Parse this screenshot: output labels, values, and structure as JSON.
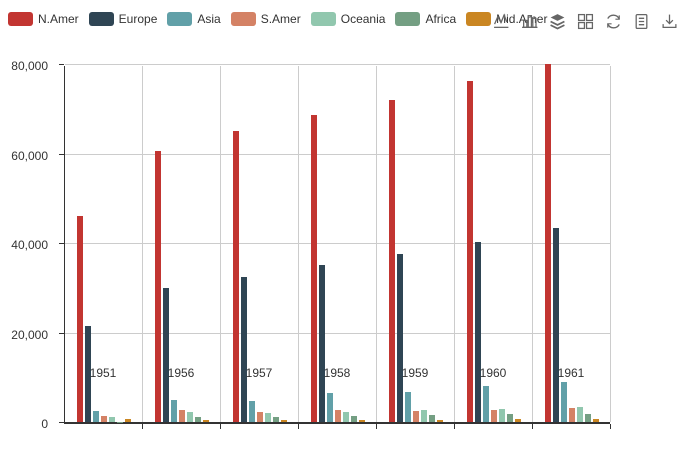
{
  "legend": {
    "items": [
      {
        "label": "N.Amer",
        "color": "#c23531"
      },
      {
        "label": "Europe",
        "color": "#2f4554"
      },
      {
        "label": "Asia",
        "color": "#61a0a8"
      },
      {
        "label": "S.Amer",
        "color": "#d48265"
      },
      {
        "label": "Oceania",
        "color": "#91c7ae"
      },
      {
        "label": "Africa",
        "color": "#749f83"
      },
      {
        "label": "Mid.Amer",
        "color": "#ca8622"
      }
    ]
  },
  "toolbar": {
    "icons": [
      "line-chart-icon",
      "bar-chart-icon",
      "stack-icon",
      "tiled-icon",
      "restore-icon",
      "data-view-icon",
      "save-image-icon"
    ],
    "icon_color": "#666666"
  },
  "chart_data": {
    "type": "bar",
    "title": "",
    "xlabel": "",
    "ylabel": "",
    "categories": [
      "1951",
      "1956",
      "1957",
      "1958",
      "1959",
      "1960",
      "1961"
    ],
    "series": [
      {
        "name": "N.Amer",
        "color": "#c23531",
        "values": [
          46000,
          60500,
          65000,
          68700,
          72000,
          76300,
          80000
        ]
      },
      {
        "name": "Europe",
        "color": "#2f4554",
        "values": [
          21400,
          30000,
          32400,
          35000,
          37500,
          40300,
          43300
        ]
      },
      {
        "name": "Asia",
        "color": "#61a0a8",
        "values": [
          2400,
          4900,
          4800,
          6500,
          6700,
          8000,
          9000
        ]
      },
      {
        "name": "S.Amer",
        "color": "#d48265",
        "values": [
          1400,
          2650,
          2300,
          2600,
          2500,
          2750,
          3150
        ]
      },
      {
        "name": "Oceania",
        "color": "#91c7ae",
        "values": [
          1150,
          2250,
          2050,
          2250,
          2750,
          2900,
          3350
        ]
      },
      {
        "name": "Africa",
        "color": "#749f83",
        "values": [
          100,
          1100,
          1150,
          1270,
          1500,
          1800,
          1700
        ]
      },
      {
        "name": "Mid.Amer",
        "color": "#ca8622",
        "values": [
          650,
          450,
          500,
          450,
          500,
          740,
          780
        ]
      }
    ],
    "ylim": [
      0,
      80000
    ],
    "yticks": [
      0,
      20000,
      40000,
      60000,
      80000
    ],
    "ytick_labels": [
      "0",
      "20,000",
      "40,000",
      "60,000",
      "80,000"
    ],
    "grid": true,
    "legend_position": "top-left"
  }
}
